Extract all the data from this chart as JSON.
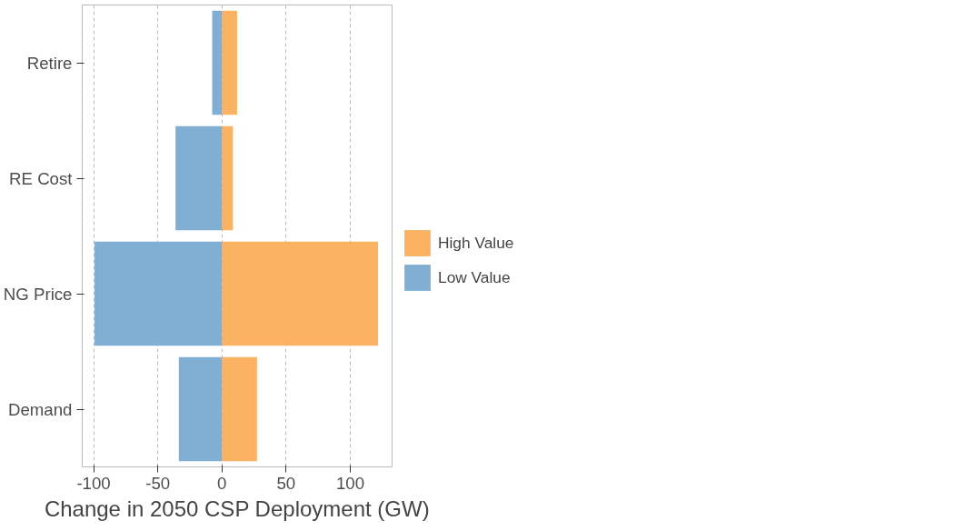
{
  "chart_data": {
    "type": "bar",
    "stacked": true,
    "orientation": "horizontal",
    "xlabel": "Change in 2050 CSP Deployment (GW)",
    "categories": [
      "Retire",
      "RE Cost",
      "NG Price",
      "Demand"
    ],
    "series": [
      {
        "name": "High Value",
        "color": "#fbb263",
        "values": [
          11.8,
          8.6,
          121.7,
          27.3
        ]
      },
      {
        "name": "Low Value",
        "color": "#80afd3",
        "values": [
          -7.6,
          -36.2,
          -99.3,
          -33.6
        ]
      }
    ],
    "xlim": [
      -108.9,
      132.6
    ],
    "xticks": [
      -100,
      -50,
      0,
      50,
      100
    ],
    "grid": "x",
    "legend": "right"
  }
}
